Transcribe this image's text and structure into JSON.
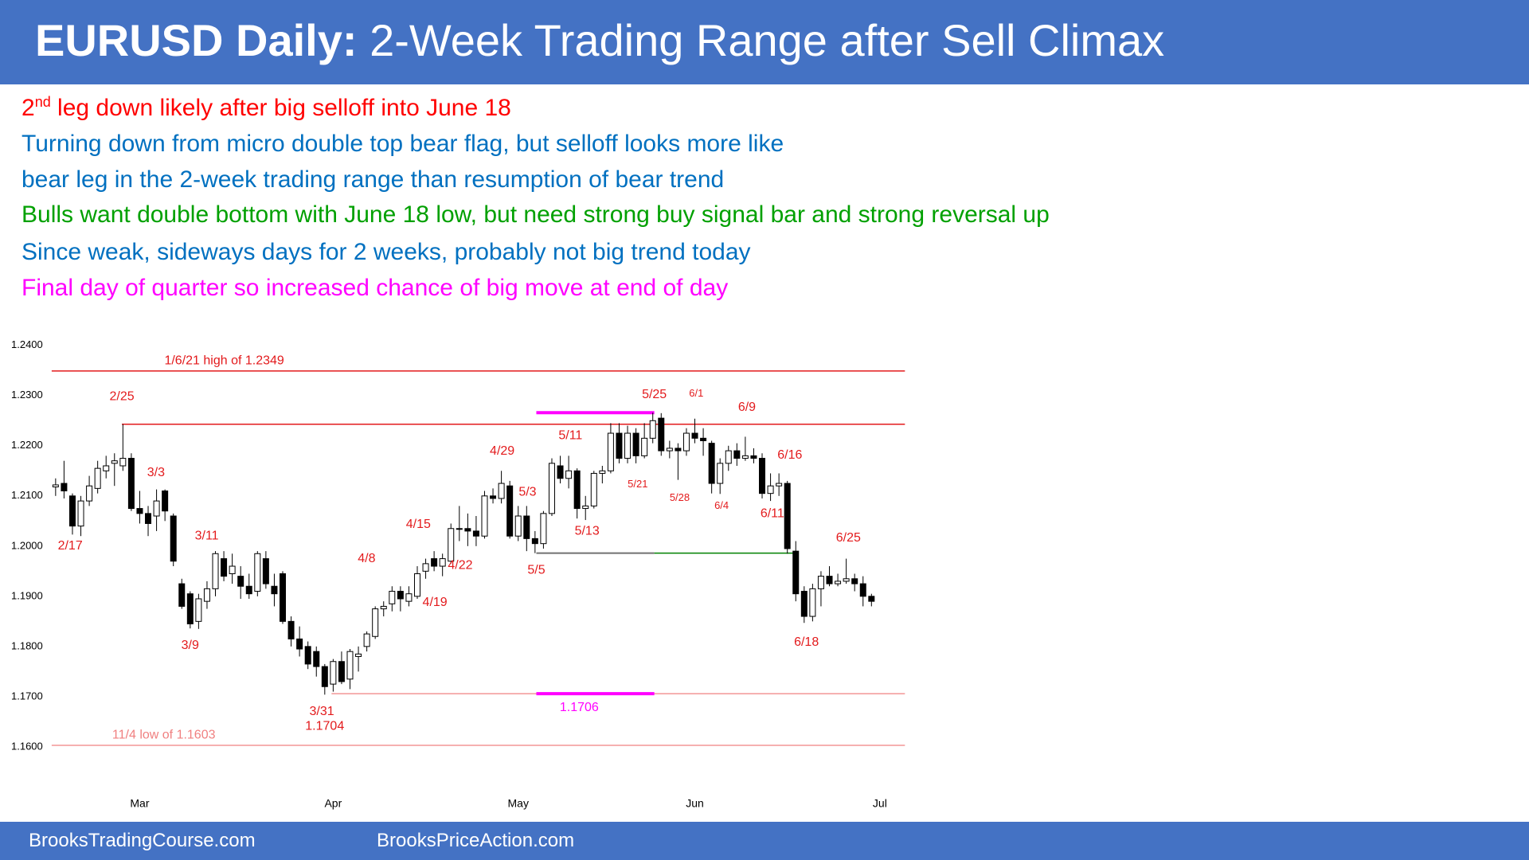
{
  "header": {
    "title_bold": "EURUSD Daily:",
    "title": "2-Week Trading Range after Sell Climax"
  },
  "notes": [
    {
      "prefix": "2",
      "superscript": "nd",
      "text": " leg down likely after big selloff into June 18",
      "color": "#ff0000"
    },
    {
      "text": "Turning down from micro double top bear flag, but selloff looks more like",
      "color": "#0070c0"
    },
    {
      "text": "bear leg in the 2-week trading range than resumption of bear trend",
      "color": "#0070c0"
    },
    {
      "text": "Bulls want double bottom with June 18 low, but need strong buy signal bar and strong reversal up",
      "color": "#00a000"
    },
    {
      "text": "Since weak, sideways days for 2 weeks, probably not big trend today",
      "color": "#0070c0"
    },
    {
      "text": "Final day of quarter so increased chance of big move at end of day",
      "color": "#ff00ff"
    }
  ],
  "footer": [
    "BrooksTradingCourse.com",
    "BrooksPriceAction.com"
  ],
  "chart_data": {
    "type": "candlestick",
    "up_color": "#ffffff",
    "down_color": "#000000",
    "ylim": [
      1.153,
      1.2425
    ],
    "yticks": [
      {
        "value": 1.24,
        "label": "1.2400"
      },
      {
        "value": 1.23,
        "label": "1.2300"
      },
      {
        "value": 1.22,
        "label": "1.2200"
      },
      {
        "value": 1.21,
        "label": "1.2100"
      },
      {
        "value": 1.2,
        "label": "1.2000"
      },
      {
        "value": 1.19,
        "label": "1.1900"
      },
      {
        "value": 1.18,
        "label": "1.1800"
      },
      {
        "value": 1.17,
        "label": "1.1700"
      },
      {
        "value": 1.16,
        "label": "1.1600"
      }
    ],
    "xlim": [
      -1.5,
      100
    ],
    "xticks": [
      {
        "value": 10,
        "label": "Mar"
      },
      {
        "value": 33,
        "label": "Apr"
      },
      {
        "value": 55,
        "label": "May"
      },
      {
        "value": 76,
        "label": "Jun"
      },
      {
        "value": 98,
        "label": "Jul"
      }
    ],
    "open": [
      1.2118,
      1.2125,
      1.21,
      1.204,
      1.209,
      1.2115,
      1.215,
      1.2165,
      1.216,
      1.2175,
      1.2075,
      1.2065,
      1.206,
      1.211,
      1.206,
      1.1925,
      1.1905,
      1.185,
      1.189,
      1.1915,
      1.1975,
      1.1945,
      1.194,
      1.192,
      1.191,
      1.1975,
      1.192,
      1.1945,
      1.185,
      1.1815,
      1.18,
      1.179,
      1.176,
      1.1725,
      1.177,
      1.1735,
      1.178,
      1.18,
      1.182,
      1.1875,
      1.1885,
      1.191,
      1.189,
      1.19,
      1.195,
      1.1975,
      1.196,
      1.197,
      1.2035,
      1.2035,
      1.203,
      1.202,
      1.21,
      1.2095,
      1.212,
      1.202,
      1.206,
      1.2015,
      1.2005,
      1.2065,
      1.216,
      1.2135,
      1.215,
      1.2075,
      1.208,
      1.2145,
      1.215,
      1.2225,
      1.2175,
      1.2225,
      1.218,
      1.2215,
      1.2255,
      1.219,
      1.2195,
      1.219,
      1.2225,
      1.2215,
      1.2205,
      1.2125,
      1.2165,
      1.219,
      1.2175,
      1.218,
      1.2175,
      1.2105,
      1.212,
      1.2125,
      1.199,
      1.191,
      1.186,
      1.1915,
      1.194,
      1.1925,
      1.193,
      1.1935,
      1.1925,
      1.19
    ],
    "high": [
      1.2135,
      1.217,
      1.2105,
      1.21,
      1.214,
      1.217,
      1.218,
      1.2185,
      1.2243,
      1.2185,
      1.211,
      1.208,
      1.2113,
      1.2113,
      1.2065,
      1.1935,
      1.191,
      1.1905,
      1.193,
      1.199,
      1.199,
      1.1985,
      1.196,
      1.1945,
      1.199,
      1.199,
      1.1945,
      1.195,
      1.186,
      1.184,
      1.181,
      1.18,
      1.1765,
      1.1775,
      1.179,
      1.1795,
      1.18,
      1.183,
      1.188,
      1.189,
      1.192,
      1.192,
      1.192,
      1.196,
      1.1975,
      1.199,
      1.1985,
      1.2045,
      1.208,
      1.2065,
      1.206,
      1.211,
      1.2115,
      1.215,
      1.213,
      1.208,
      1.208,
      1.203,
      1.207,
      1.2175,
      1.218,
      1.218,
      1.2155,
      1.21,
      1.215,
      1.216,
      1.2245,
      1.2245,
      1.224,
      1.2235,
      1.2245,
      1.2266,
      1.2265,
      1.221,
      1.2205,
      1.2235,
      1.2254,
      1.2235,
      1.221,
      1.2175,
      1.22,
      1.2205,
      1.2218,
      1.2195,
      1.2185,
      1.2145,
      1.2145,
      1.213,
      1.201,
      1.192,
      1.1925,
      1.195,
      1.196,
      1.1945,
      1.1975,
      1.1945,
      1.194,
      1.1905
    ],
    "low": [
      1.21,
      1.2095,
      1.2023,
      1.202,
      1.208,
      1.2105,
      1.2135,
      1.212,
      1.215,
      1.207,
      1.2045,
      1.202,
      1.203,
      1.205,
      1.196,
      1.1875,
      1.1836,
      1.1835,
      1.1875,
      1.19,
      1.193,
      1.1925,
      1.1895,
      1.1895,
      1.19,
      1.1915,
      1.188,
      1.1845,
      1.18,
      1.178,
      1.1755,
      1.174,
      1.1704,
      1.171,
      1.1725,
      1.1715,
      1.175,
      1.179,
      1.1815,
      1.186,
      1.187,
      1.187,
      1.188,
      1.1895,
      1.1935,
      1.195,
      1.194,
      1.1965,
      1.201,
      1.2,
      1.2,
      1.2015,
      1.2085,
      1.2085,
      1.2015,
      1.201,
      1.199,
      1.1986,
      1.1995,
      1.206,
      1.2125,
      1.2115,
      1.2055,
      1.2052,
      1.2075,
      1.2125,
      1.2145,
      1.2165,
      1.2165,
      1.2165,
      1.2175,
      1.2205,
      1.218,
      1.2175,
      1.2132,
      1.218,
      1.2205,
      1.218,
      1.2105,
      1.2104,
      1.215,
      1.216,
      1.217,
      1.2165,
      1.2095,
      1.209,
      1.21,
      1.1985,
      1.189,
      1.1847,
      1.185,
      1.188,
      1.192,
      1.192,
      1.1925,
      1.191,
      1.188,
      1.188
    ],
    "close": [
      1.2122,
      1.211,
      1.204,
      1.209,
      1.212,
      1.2155,
      1.216,
      1.217,
      1.2175,
      1.2075,
      1.2065,
      1.2045,
      1.209,
      1.207,
      1.197,
      1.188,
      1.1845,
      1.1895,
      1.1915,
      1.1985,
      1.194,
      1.196,
      1.192,
      1.1905,
      1.1985,
      1.1925,
      1.1905,
      1.185,
      1.1815,
      1.1795,
      1.1765,
      1.176,
      1.172,
      1.177,
      1.173,
      1.179,
      1.1785,
      1.1825,
      1.1875,
      1.188,
      1.191,
      1.1895,
      1.1905,
      1.1945,
      1.1965,
      1.196,
      1.1975,
      1.2035,
      1.2035,
      1.203,
      1.202,
      1.21,
      1.2095,
      1.2125,
      1.202,
      1.206,
      1.2015,
      1.2005,
      1.2065,
      1.2165,
      1.2135,
      1.215,
      1.2075,
      1.208,
      1.2145,
      1.215,
      1.2225,
      1.2175,
      1.2225,
      1.218,
      1.2215,
      1.225,
      1.219,
      1.2195,
      1.219,
      1.2225,
      1.2215,
      1.221,
      1.2125,
      1.2165,
      1.219,
      1.2175,
      1.218,
      1.2175,
      1.2105,
      1.212,
      1.2125,
      1.1995,
      1.1905,
      1.186,
      1.1915,
      1.194,
      1.1925,
      1.193,
      1.1935,
      1.1925,
      1.19,
      1.189
    ],
    "lines": [
      {
        "value": 1.2349,
        "color": "#e31a1c",
        "label": "1/6/21 high of 1.2349"
      },
      {
        "value": 1.2243,
        "color": "#e31a1c"
      },
      {
        "value": 1.2266,
        "color": "#ff00ff"
      },
      {
        "value": 1.1986,
        "color": "#707070"
      },
      {
        "value": 1.1986,
        "color": "#008000"
      },
      {
        "value": 1.1706,
        "color": "#f08080"
      },
      {
        "value": 1.1706,
        "color": "#ff00ff",
        "label": "1.1706"
      },
      {
        "value": 1.1603,
        "color": "#f08080",
        "label": "11/4 low of 1.1603"
      }
    ],
    "annotation_color": "#e31a1c",
    "annotations": [
      "2/25",
      "2/17",
      "3/3",
      "3/11",
      "3/9",
      "3/31",
      "1.1704",
      "4/8",
      "4/15",
      "4/22",
      "4/19",
      "4/29",
      "5/3",
      "5/5",
      "5/11",
      "5/13",
      "5/21",
      "5/25",
      "5/28",
      "6/1",
      "6/4",
      "6/9",
      "6/16",
      "6/11",
      "6/25",
      "6/18"
    ]
  }
}
